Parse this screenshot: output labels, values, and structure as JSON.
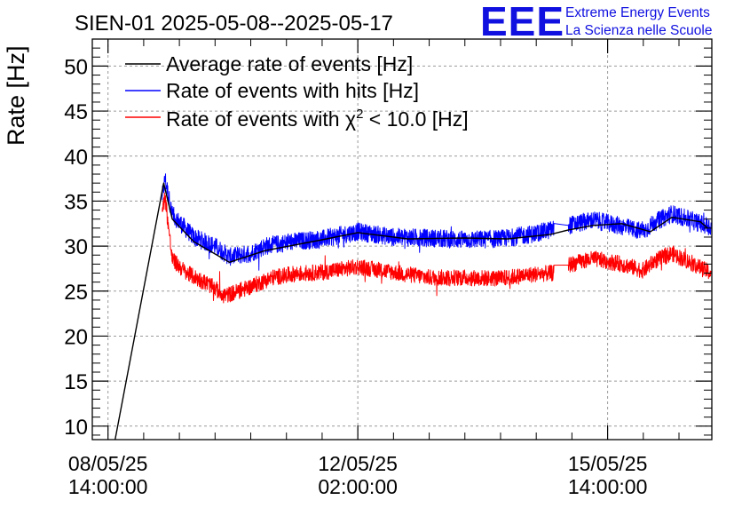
{
  "chart_data": {
    "type": "line",
    "title": "SIEN-01 2025-05-08--2025-05-17",
    "xlabel": "",
    "ylabel": "Rate [Hz]",
    "ylim": [
      8.5,
      53
    ],
    "yticks": [
      10,
      15,
      20,
      25,
      30,
      35,
      40,
      45,
      50
    ],
    "xlim_days": [
      -0.22,
      8.46
    ],
    "x_unit": "days since 08/05/25 14:00:00",
    "xtick_labels": [
      {
        "x": 0,
        "line1": "08/05/25",
        "line2": "14:00:00"
      },
      {
        "x": 3.5,
        "line1": "12/05/25",
        "line2": "02:00:00"
      },
      {
        "x": 7,
        "line1": "15/05/25",
        "line2": "14:00:00"
      }
    ],
    "grid": true,
    "legend_position": "top-left",
    "series": [
      {
        "name": "Average rate of events [Hz]",
        "color": "#000000",
        "noise": 0,
        "points": [
          [
            0.1,
            8.5
          ],
          [
            0.78,
            37.0
          ],
          [
            0.9,
            33.0
          ],
          [
            1.2,
            30.5
          ],
          [
            1.7,
            28.2
          ],
          [
            2.2,
            29.5
          ],
          [
            3.0,
            30.7
          ],
          [
            3.5,
            31.5
          ],
          [
            4.2,
            30.8
          ],
          [
            5.0,
            30.9
          ],
          [
            5.6,
            30.8
          ],
          [
            6.2,
            31.3
          ],
          [
            6.45,
            31.8
          ],
          [
            6.8,
            32.3
          ],
          [
            7.2,
            32.5
          ],
          [
            7.6,
            31.6
          ],
          [
            7.9,
            33.2
          ],
          [
            8.3,
            32.7
          ],
          [
            8.4,
            32.0
          ]
        ]
      },
      {
        "name": "Rate of events with hits [Hz]",
        "color": "#0000ff",
        "noise": 1.0,
        "gaps": [
          [
            6.25,
            6.45
          ]
        ],
        "points": [
          [
            0.76,
            35.5
          ],
          [
            0.8,
            37.5
          ],
          [
            0.9,
            33.5
          ],
          [
            1.2,
            31.0
          ],
          [
            1.5,
            30.0
          ],
          [
            1.7,
            28.8
          ],
          [
            2.0,
            29.2
          ],
          [
            2.2,
            30.0
          ],
          [
            2.6,
            30.5
          ],
          [
            3.0,
            30.8
          ],
          [
            3.5,
            31.6
          ],
          [
            4.0,
            31.0
          ],
          [
            4.5,
            30.9
          ],
          [
            5.0,
            30.7
          ],
          [
            5.5,
            30.8
          ],
          [
            6.0,
            31.4
          ],
          [
            6.25,
            31.9
          ],
          [
            6.45,
            32.3
          ],
          [
            6.8,
            32.9
          ],
          [
            7.2,
            32.2
          ],
          [
            7.5,
            31.6
          ],
          [
            7.65,
            32.6
          ],
          [
            7.9,
            33.6
          ],
          [
            8.2,
            32.8
          ],
          [
            8.45,
            32.1
          ]
        ]
      },
      {
        "name": "Rate of events with χ² < 10.0 [Hz]",
        "color": "#ff0000",
        "noise": 0.9,
        "gaps": [
          [
            6.25,
            6.45
          ]
        ],
        "points": [
          [
            0.76,
            34.0
          ],
          [
            0.8,
            35.5
          ],
          [
            0.9,
            28.5
          ],
          [
            1.1,
            27.0
          ],
          [
            1.4,
            25.8
          ],
          [
            1.65,
            24.5
          ],
          [
            2.0,
            25.5
          ],
          [
            2.3,
            26.5
          ],
          [
            2.6,
            26.9
          ],
          [
            3.0,
            27.1
          ],
          [
            3.5,
            27.7
          ],
          [
            4.0,
            27.1
          ],
          [
            4.5,
            26.5
          ],
          [
            5.0,
            26.5
          ],
          [
            5.5,
            26.4
          ],
          [
            6.0,
            26.9
          ],
          [
            6.25,
            27.0
          ],
          [
            6.45,
            27.9
          ],
          [
            6.8,
            28.6
          ],
          [
            7.2,
            28.0
          ],
          [
            7.5,
            27.3
          ],
          [
            7.65,
            28.3
          ],
          [
            7.9,
            29.2
          ],
          [
            8.2,
            28.0
          ],
          [
            8.45,
            27.0
          ]
        ]
      }
    ]
  },
  "legend": {
    "items": [
      {
        "label": "Average rate of events [Hz]"
      },
      {
        "label": "Rate of events with hits [Hz]"
      },
      {
        "label_prefix": "Rate of events with ",
        "label_symbol": "χ",
        "label_sup": "2",
        "label_suffix": " < 10.0 [Hz]"
      }
    ]
  },
  "logo": {
    "letters": "EEE",
    "line1": "Extreme Energy Events",
    "line2": "La Scienza nelle Scuole"
  }
}
